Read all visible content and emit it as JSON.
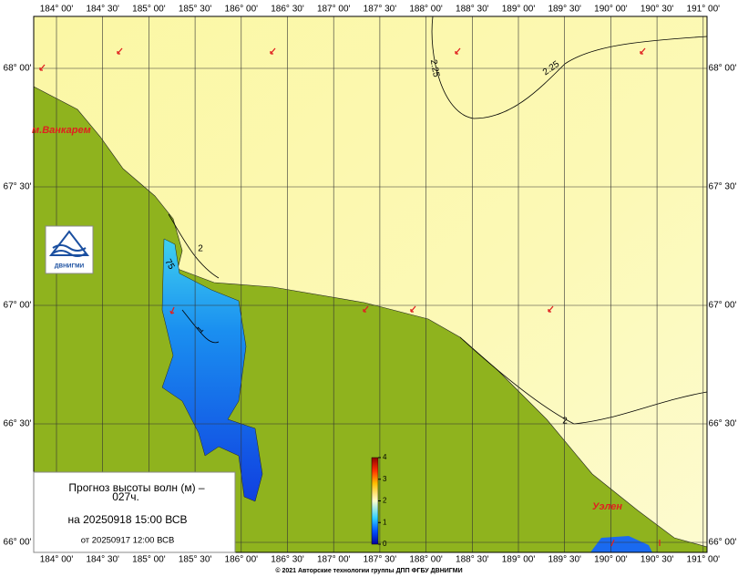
{
  "map": {
    "lon_ticks": [
      {
        "value": 184,
        "label": "184° 00'"
      },
      {
        "value": 184.5,
        "label": "184° 30'"
      },
      {
        "value": 185,
        "label": "185° 00'"
      },
      {
        "value": 185.5,
        "label": "185° 30'"
      },
      {
        "value": 186,
        "label": "186° 00'"
      },
      {
        "value": 186.5,
        "label": "186° 30'"
      },
      {
        "value": 187,
        "label": "187° 00'"
      },
      {
        "value": 187.5,
        "label": "187° 30'"
      },
      {
        "value": 188,
        "label": "188° 00'"
      },
      {
        "value": 188.5,
        "label": "188° 30'"
      },
      {
        "value": 189,
        "label": "189° 00'"
      },
      {
        "value": 189.5,
        "label": "189° 30'"
      },
      {
        "value": 190,
        "label": "190° 00'"
      },
      {
        "value": 190.5,
        "label": "190° 30'"
      },
      {
        "value": 191,
        "label": "191° 00'"
      }
    ],
    "lat_ticks": [
      {
        "value": 68,
        "label": "68° 00'"
      },
      {
        "value": 67.5,
        "label": "67° 30'"
      },
      {
        "value": 67,
        "label": "67° 00'"
      },
      {
        "value": 66.5,
        "label": "66° 30'"
      },
      {
        "value": 66,
        "label": "66° 00'"
      }
    ],
    "contour_labels": [
      "2.25",
      "2.25",
      "2",
      "2",
      "75",
      "1"
    ],
    "places": [
      "м.Ванкарем",
      "Уэлен"
    ],
    "logo": "ДВНИГМИ"
  },
  "legend": {
    "title": "Прогноз высоты волн (м) –",
    "lead": "027ч.",
    "valid": "на 20250918 15:00 ВСВ",
    "issued": "от 20250917 12:00 ВСВ"
  },
  "colorbar": {
    "range": [
      0,
      4
    ],
    "ticks": [
      0,
      1,
      2,
      3,
      4
    ]
  },
  "footer": "© 2021 Авторские технологии группы ДПП ФГБУ ДВНИГМИ"
}
